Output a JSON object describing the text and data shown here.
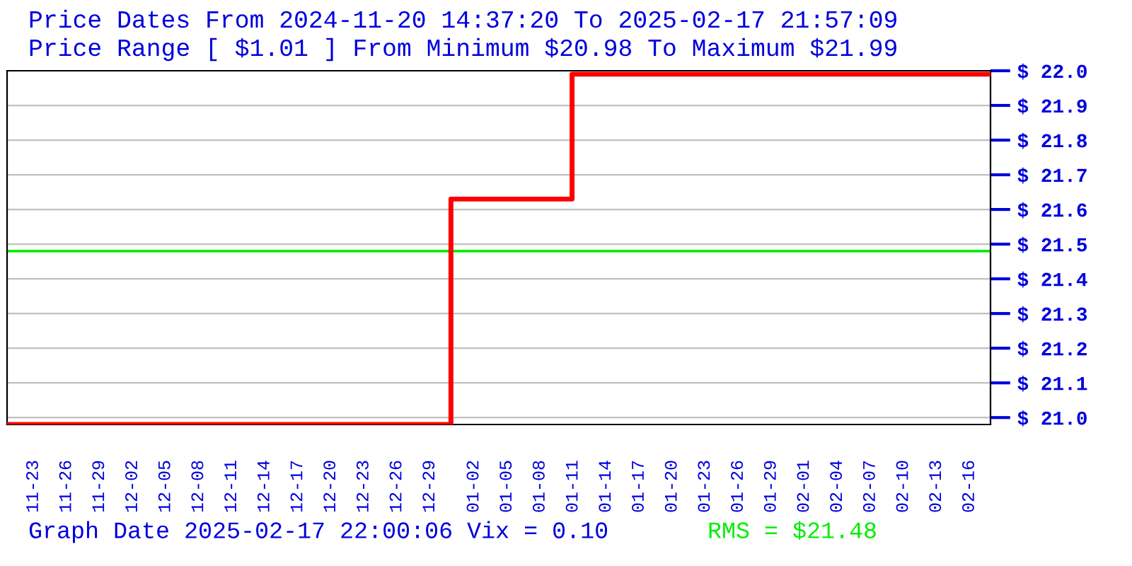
{
  "chart_data": {
    "type": "step",
    "title": "Price Dates From 2024-11-20 14:37:20 To 2025-02-17 21:57:09",
    "subtitle": "Price Range [ $1.01 ] From Minimum $20.98 To Maximum $21.99",
    "x": [
      "2024-11-20T14:37",
      "2024-12-30T22:00",
      "2025-01-10T22:00",
      "2025-02-17T21:57"
    ],
    "series": [
      {
        "color": "#ff0000",
        "values": [
          20.98,
          21.63,
          21.99,
          21.99
        ]
      }
    ],
    "xlim": [
      "2024-11-20T14:37",
      "2025-02-17T21:57"
    ],
    "xticks": [
      {
        "value": "2024-11-23",
        "label": "11-23"
      },
      {
        "value": "2024-11-26",
        "label": "11-26"
      },
      {
        "value": "2024-11-29",
        "label": "11-29"
      },
      {
        "value": "2024-12-02",
        "label": "12-02"
      },
      {
        "value": "2024-12-05",
        "label": "12-05"
      },
      {
        "value": "2024-12-08",
        "label": "12-08"
      },
      {
        "value": "2024-12-11",
        "label": "12-11"
      },
      {
        "value": "2024-12-14",
        "label": "12-14"
      },
      {
        "value": "2024-12-17",
        "label": "12-17"
      },
      {
        "value": "2024-12-20",
        "label": "12-20"
      },
      {
        "value": "2024-12-23",
        "label": "12-23"
      },
      {
        "value": "2024-12-26",
        "label": "12-26"
      },
      {
        "value": "2024-12-29",
        "label": "12-29"
      },
      {
        "value": "2025-01-02",
        "label": "01-02"
      },
      {
        "value": "2025-01-05",
        "label": "01-05"
      },
      {
        "value": "2025-01-08",
        "label": "01-08"
      },
      {
        "value": "2025-01-11",
        "label": "01-11"
      },
      {
        "value": "2025-01-14",
        "label": "01-14"
      },
      {
        "value": "2025-01-17",
        "label": "01-17"
      },
      {
        "value": "2025-01-20",
        "label": "01-20"
      },
      {
        "value": "2025-01-23",
        "label": "01-23"
      },
      {
        "value": "2025-01-26",
        "label": "01-26"
      },
      {
        "value": "2025-01-29",
        "label": "01-29"
      },
      {
        "value": "2025-02-01",
        "label": "02-01"
      },
      {
        "value": "2025-02-04",
        "label": "02-04"
      },
      {
        "value": "2025-02-07",
        "label": "02-07"
      },
      {
        "value": "2025-02-10",
        "label": "02-10"
      },
      {
        "value": "2025-02-13",
        "label": "02-13"
      },
      {
        "value": "2025-02-16",
        "label": "02-16"
      }
    ],
    "ylim": [
      20.98,
      22.0
    ],
    "yticks": [
      {
        "value": 21.0,
        "label": "$ 21.0"
      },
      {
        "value": 21.1,
        "label": "$ 21.1"
      },
      {
        "value": 21.2,
        "label": "$ 21.2"
      },
      {
        "value": 21.3,
        "label": "$ 21.3"
      },
      {
        "value": 21.4,
        "label": "$ 21.4"
      },
      {
        "value": 21.5,
        "label": "$ 21.5"
      },
      {
        "value": 21.6,
        "label": "$ 21.6"
      },
      {
        "value": 21.7,
        "label": "$ 21.7"
      },
      {
        "value": 21.8,
        "label": "$ 21.8"
      },
      {
        "value": 21.9,
        "label": "$ 21.9"
      },
      {
        "value": 22.0,
        "label": "$ 22.0"
      }
    ],
    "ref_lines": [
      {
        "axis": "y",
        "value": 21.48,
        "label": "RMS = $21.48",
        "color": "#00ee00"
      }
    ],
    "annotations": [
      "Graph Date 2025-02-17 22:00:06 Vix = 0.10"
    ],
    "grid": "y",
    "legend": false,
    "marker": "none",
    "line_style": "solid"
  }
}
